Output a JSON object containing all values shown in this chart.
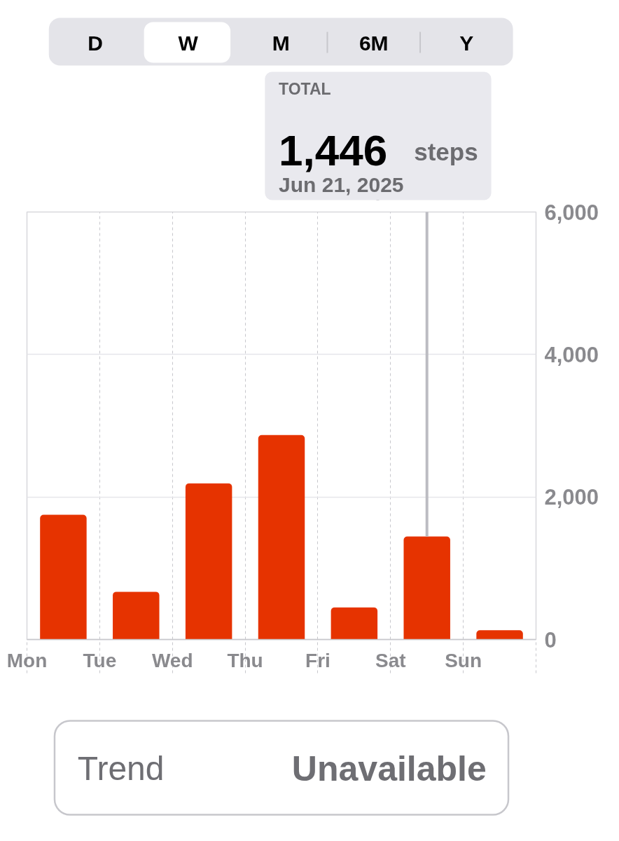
{
  "chart_data": {
    "type": "bar",
    "categories": [
      "Mon",
      "Tue",
      "Wed",
      "Thu",
      "Fri",
      "Sat",
      "Sun"
    ],
    "values": [
      1750,
      670,
      2190,
      2870,
      450,
      1446,
      130
    ],
    "color": "#e63300",
    "ylim": [
      0,
      6000
    ],
    "yticks": [
      0,
      {
        "value": 2000,
        "label": "2,000"
      },
      {
        "value": 4000,
        "label": "4,000"
      },
      {
        "value": 6000,
        "label": "6,000"
      }
    ],
    "grid": true,
    "ref_lines": [
      {
        "axis": "x",
        "value": "Sat",
        "color": "#bcbcc2"
      }
    ],
    "annotations": [
      "D",
      "W",
      "M",
      "6M",
      "Y",
      "TOTAL",
      "1,446",
      "steps",
      "Jun 21, 2025",
      "Trend",
      "Unavailable"
    ]
  }
}
